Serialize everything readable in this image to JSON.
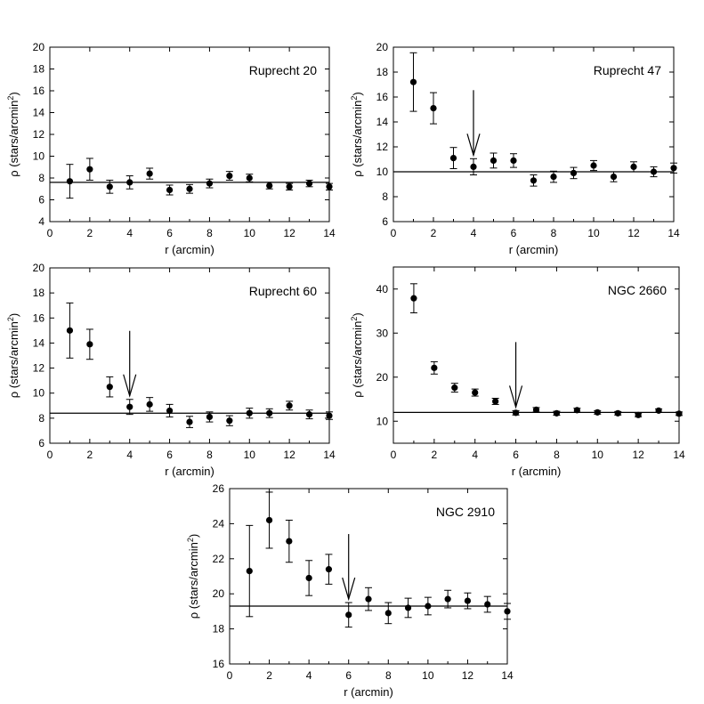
{
  "chart_data": [
    {
      "type": "scatter",
      "title": "Ruprecht 20",
      "xlabel": "r (arcmin)",
      "ylabel_prefix": "ρ (stars/arcmin",
      "ylabel_sup": "2",
      "ylabel_suffix": ")",
      "xlim": [
        0,
        14
      ],
      "ylim": [
        4,
        20
      ],
      "xticks": [
        0,
        2,
        4,
        6,
        8,
        10,
        12,
        14
      ],
      "yticks": [
        4,
        6,
        8,
        10,
        12,
        14,
        16,
        18,
        20
      ],
      "background_level": 7.6,
      "arrow_r": null,
      "points": [
        {
          "r": 1,
          "rho": 7.7,
          "err": 1.55
        },
        {
          "r": 2,
          "rho": 8.8,
          "err": 1.0
        },
        {
          "r": 3,
          "rho": 7.2,
          "err": 0.6
        },
        {
          "r": 4,
          "rho": 7.6,
          "err": 0.6
        },
        {
          "r": 5,
          "rho": 8.4,
          "err": 0.5
        },
        {
          "r": 6,
          "rho": 6.9,
          "err": 0.45
        },
        {
          "r": 7,
          "rho": 7.0,
          "err": 0.4
        },
        {
          "r": 8,
          "rho": 7.5,
          "err": 0.4
        },
        {
          "r": 9,
          "rho": 8.2,
          "err": 0.4
        },
        {
          "r": 10,
          "rho": 8.0,
          "err": 0.35
        },
        {
          "r": 11,
          "rho": 7.3,
          "err": 0.3
        },
        {
          "r": 12,
          "rho": 7.2,
          "err": 0.3
        },
        {
          "r": 13,
          "rho": 7.5,
          "err": 0.3
        },
        {
          "r": 14,
          "rho": 7.2,
          "err": 0.3
        }
      ]
    },
    {
      "type": "scatter",
      "title": "Ruprecht 47",
      "xlabel": "r (arcmin)",
      "ylabel_prefix": "ρ (stars/arcmin",
      "ylabel_sup": "2",
      "ylabel_suffix": ")",
      "xlim": [
        0,
        14
      ],
      "ylim": [
        6,
        20
      ],
      "xticks": [
        0,
        2,
        4,
        6,
        8,
        10,
        12,
        14
      ],
      "yticks": [
        6,
        8,
        10,
        12,
        14,
        16,
        18,
        20
      ],
      "background_level": 10.0,
      "arrow_r": 4,
      "points": [
        {
          "r": 1,
          "rho": 17.2,
          "err": 2.35
        },
        {
          "r": 2,
          "rho": 15.1,
          "err": 1.25
        },
        {
          "r": 3,
          "rho": 11.1,
          "err": 0.85
        },
        {
          "r": 4,
          "rho": 10.4,
          "err": 0.65
        },
        {
          "r": 5,
          "rho": 10.9,
          "err": 0.6
        },
        {
          "r": 6,
          "rho": 10.9,
          "err": 0.55
        },
        {
          "r": 7,
          "rho": 9.3,
          "err": 0.45
        },
        {
          "r": 8,
          "rho": 9.6,
          "err": 0.45
        },
        {
          "r": 9,
          "rho": 9.9,
          "err": 0.45
        },
        {
          "r": 10,
          "rho": 10.5,
          "err": 0.4
        },
        {
          "r": 11,
          "rho": 9.6,
          "err": 0.4
        },
        {
          "r": 12,
          "rho": 10.4,
          "err": 0.4
        },
        {
          "r": 13,
          "rho": 10.0,
          "err": 0.4
        },
        {
          "r": 14,
          "rho": 10.3,
          "err": 0.4
        }
      ]
    },
    {
      "type": "scatter",
      "title": "Ruprecht 60",
      "xlabel": "r (arcmin)",
      "ylabel_prefix": "ρ (stars/arcmin",
      "ylabel_sup": "2",
      "ylabel_suffix": ")",
      "xlim": [
        0,
        14
      ],
      "ylim": [
        6,
        20
      ],
      "xticks": [
        0,
        2,
        4,
        6,
        8,
        10,
        12,
        14
      ],
      "yticks": [
        6,
        8,
        10,
        12,
        14,
        16,
        18,
        20
      ],
      "background_level": 8.4,
      "arrow_r": 4,
      "points": [
        {
          "r": 1,
          "rho": 15.0,
          "err": 2.2
        },
        {
          "r": 2,
          "rho": 13.9,
          "err": 1.2
        },
        {
          "r": 3,
          "rho": 10.5,
          "err": 0.8
        },
        {
          "r": 4,
          "rho": 8.9,
          "err": 0.6
        },
        {
          "r": 5,
          "rho": 9.1,
          "err": 0.55
        },
        {
          "r": 6,
          "rho": 8.6,
          "err": 0.5
        },
        {
          "r": 7,
          "rho": 7.7,
          "err": 0.45
        },
        {
          "r": 8,
          "rho": 8.1,
          "err": 0.4
        },
        {
          "r": 9,
          "rho": 7.8,
          "err": 0.4
        },
        {
          "r": 10,
          "rho": 8.4,
          "err": 0.4
        },
        {
          "r": 11,
          "rho": 8.4,
          "err": 0.35
        },
        {
          "r": 12,
          "rho": 9.0,
          "err": 0.35
        },
        {
          "r": 13,
          "rho": 8.3,
          "err": 0.35
        },
        {
          "r": 14,
          "rho": 8.2,
          "err": 0.3
        }
      ]
    },
    {
      "type": "scatter",
      "title": "NGC 2660",
      "xlabel": "r (arcmin)",
      "ylabel_prefix": "ρ (stars/arcmin",
      "ylabel_sup": "2",
      "ylabel_suffix": ")",
      "xlim": [
        0,
        14
      ],
      "ylim": [
        5,
        45
      ],
      "xticks": [
        0,
        2,
        4,
        6,
        8,
        10,
        12,
        14
      ],
      "yticks": [
        10,
        20,
        30,
        40
      ],
      "background_level": 12.0,
      "arrow_r": 6,
      "points": [
        {
          "r": 1,
          "rho": 37.9,
          "err": 3.3
        },
        {
          "r": 2,
          "rho": 22.1,
          "err": 1.4
        },
        {
          "r": 3,
          "rho": 17.6,
          "err": 1.0
        },
        {
          "r": 4,
          "rho": 16.5,
          "err": 0.8
        },
        {
          "r": 5,
          "rho": 14.5,
          "err": 0.7
        },
        {
          "r": 6,
          "rho": 11.9,
          "err": 0.5
        },
        {
          "r": 7,
          "rho": 12.6,
          "err": 0.5
        },
        {
          "r": 8,
          "rho": 11.8,
          "err": 0.45
        },
        {
          "r": 9,
          "rho": 12.5,
          "err": 0.45
        },
        {
          "r": 10,
          "rho": 12.0,
          "err": 0.4
        },
        {
          "r": 11,
          "rho": 11.8,
          "err": 0.4
        },
        {
          "r": 12,
          "rho": 11.4,
          "err": 0.4
        },
        {
          "r": 13,
          "rho": 12.4,
          "err": 0.4
        },
        {
          "r": 14,
          "rho": 11.7,
          "err": 0.4
        }
      ]
    },
    {
      "type": "scatter",
      "title": "NGC 2910",
      "xlabel": "r (arcmin)",
      "ylabel_prefix": "ρ (stars/arcmin",
      "ylabel_sup": "2",
      "ylabel_suffix": ")",
      "xlim": [
        0,
        14
      ],
      "ylim": [
        16,
        26
      ],
      "xticks": [
        0,
        2,
        4,
        6,
        8,
        10,
        12,
        14
      ],
      "yticks": [
        16,
        18,
        20,
        22,
        24,
        26
      ],
      "background_level": 19.3,
      "arrow_r": 6,
      "points": [
        {
          "r": 1,
          "rho": 21.3,
          "err": 2.6
        },
        {
          "r": 2,
          "rho": 24.2,
          "err": 1.6
        },
        {
          "r": 3,
          "rho": 23.0,
          "err": 1.2
        },
        {
          "r": 4,
          "rho": 20.9,
          "err": 1.0
        },
        {
          "r": 5,
          "rho": 21.4,
          "err": 0.85
        },
        {
          "r": 6,
          "rho": 18.8,
          "err": 0.7
        },
        {
          "r": 7,
          "rho": 19.7,
          "err": 0.65
        },
        {
          "r": 8,
          "rho": 18.9,
          "err": 0.6
        },
        {
          "r": 9,
          "rho": 19.2,
          "err": 0.55
        },
        {
          "r": 10,
          "rho": 19.3,
          "err": 0.5
        },
        {
          "r": 11,
          "rho": 19.7,
          "err": 0.5
        },
        {
          "r": 12,
          "rho": 19.6,
          "err": 0.45
        },
        {
          "r": 13,
          "rho": 19.4,
          "err": 0.45
        },
        {
          "r": 14,
          "rho": 19.0,
          "err": 0.45
        }
      ]
    }
  ]
}
